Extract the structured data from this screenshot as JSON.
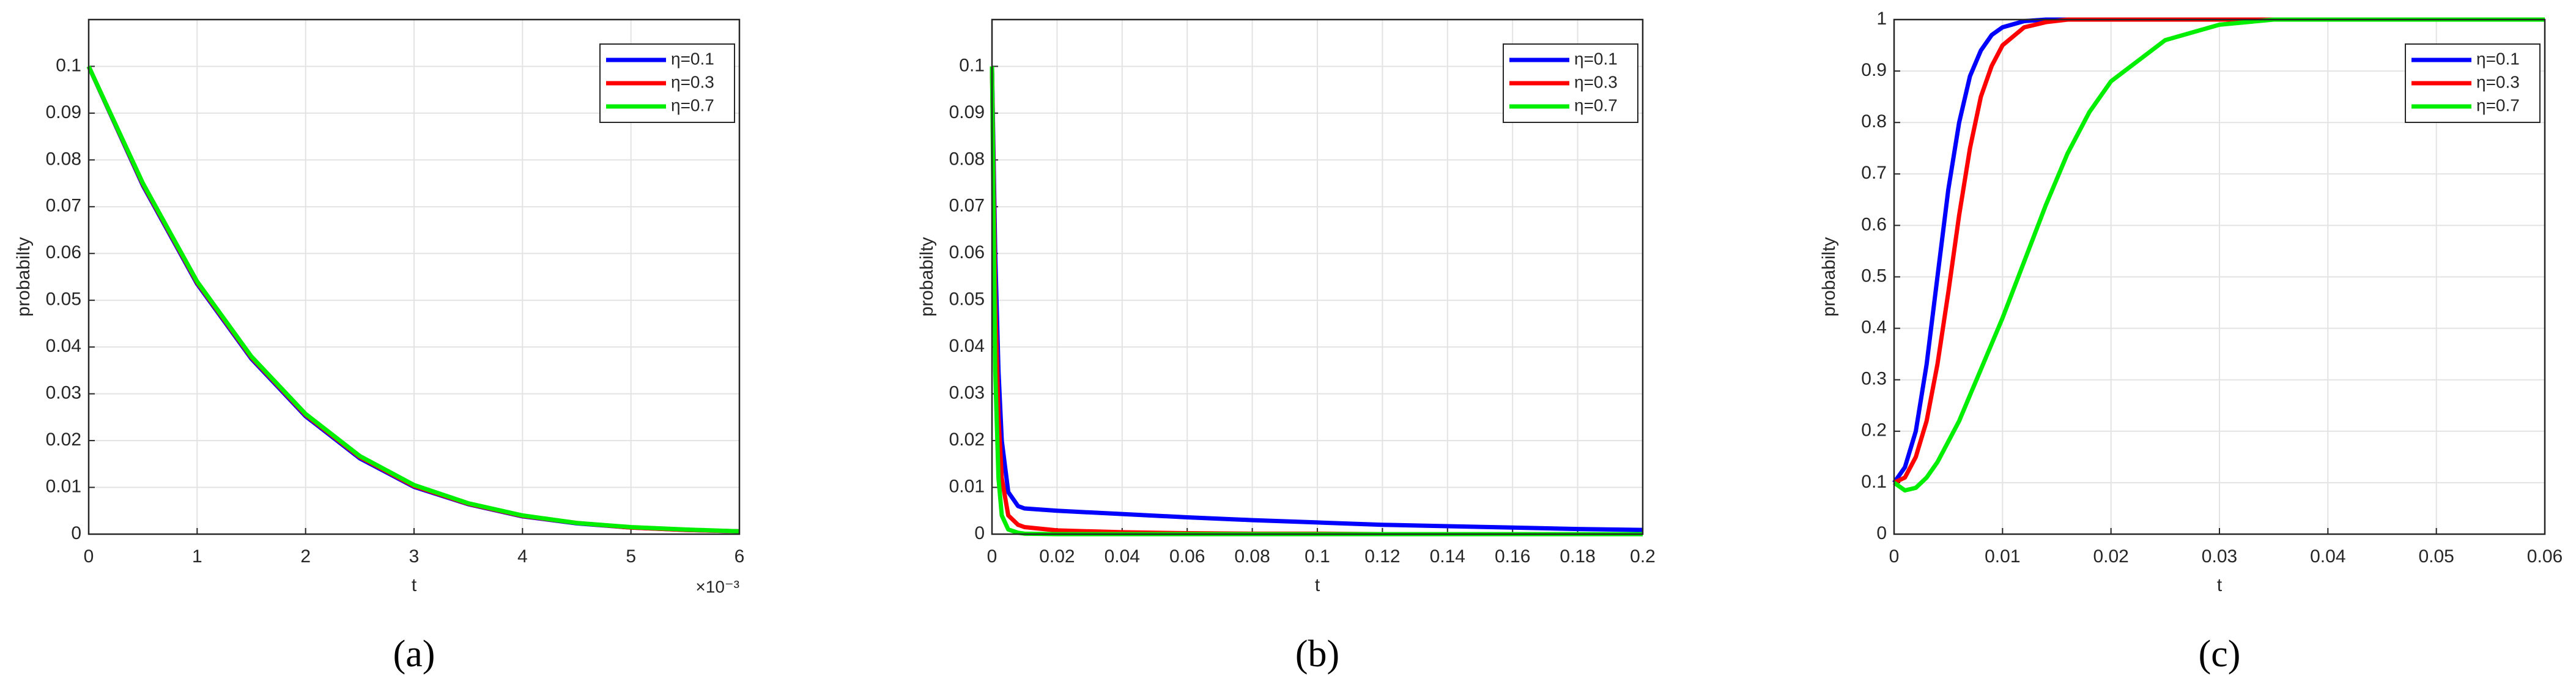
{
  "chart_data": [
    {
      "type": "line",
      "caption": "(a)",
      "x_label": "t",
      "y_label": "probabilty",
      "x_multiplier": "×10⁻³",
      "x": [
        0,
        0.5,
        1,
        1.5,
        2,
        2.5,
        3,
        3.5,
        4,
        4.5,
        5,
        5.5,
        6
      ],
      "series": [
        {
          "name": "η=0.1",
          "color": "#0000ff",
          "values": [
            0.1,
            0.0745,
            0.0535,
            0.0375,
            0.0252,
            0.0162,
            0.0101,
            0.0064,
            0.0038,
            0.0023,
            0.0014,
            0.0009,
            0.0006
          ]
        },
        {
          "name": "η=0.3",
          "color": "#ff0000",
          "values": [
            0.1,
            0.0748,
            0.0538,
            0.0378,
            0.0255,
            0.0165,
            0.0103,
            0.0065,
            0.0039,
            0.0024,
            0.0014,
            0.0009,
            0.0006
          ]
        },
        {
          "name": "η=0.7",
          "color": "#00ee00",
          "values": [
            0.1,
            0.075,
            0.054,
            0.038,
            0.0257,
            0.0167,
            0.0105,
            0.0066,
            0.004,
            0.0024,
            0.0015,
            0.001,
            0.0006
          ]
        }
      ],
      "xlim": [
        0,
        6
      ],
      "xticks": [
        0,
        1,
        2,
        3,
        4,
        5,
        6
      ],
      "ylim": [
        0,
        0.11
      ],
      "yticks": [
        0,
        0.01,
        0.02,
        0.03,
        0.04,
        0.05,
        0.06,
        0.07,
        0.08,
        0.09,
        0.1
      ],
      "grid": true,
      "legend": "top-right"
    },
    {
      "type": "line",
      "caption": "(b)",
      "x_label": "t",
      "y_label": "probabilty",
      "x": [
        0,
        0.001,
        0.002,
        0.003,
        0.005,
        0.008,
        0.01,
        0.02,
        0.04,
        0.06,
        0.08,
        0.1,
        0.12,
        0.14,
        0.16,
        0.18,
        0.2
      ],
      "series": [
        {
          "name": "η=0.1",
          "color": "#0000ff",
          "values": [
            0.1,
            0.06,
            0.035,
            0.02,
            0.009,
            0.006,
            0.0055,
            0.005,
            0.0043,
            0.0036,
            0.003,
            0.0025,
            0.002,
            0.0017,
            0.0014,
            0.0011,
            0.0009
          ]
        },
        {
          "name": "η=0.3",
          "color": "#ff0000",
          "values": [
            0.1,
            0.05,
            0.025,
            0.012,
            0.004,
            0.002,
            0.0015,
            0.0008,
            0.0004,
            0.0002,
            0.0001,
            0.0001,
            0,
            0,
            0,
            0,
            0
          ]
        },
        {
          "name": "η=0.7",
          "color": "#00ee00",
          "values": [
            0.1,
            0.035,
            0.012,
            0.004,
            0.001,
            0.0003,
            0.0001,
            0,
            0,
            0,
            0,
            0,
            0,
            0,
            0,
            0,
            0
          ]
        }
      ],
      "xlim": [
        0,
        0.2
      ],
      "xticks": [
        0,
        0.02,
        0.04,
        0.06,
        0.08,
        0.1,
        0.12,
        0.14,
        0.16,
        0.18,
        0.2
      ],
      "ylim": [
        0,
        0.11
      ],
      "yticks": [
        0,
        0.01,
        0.02,
        0.03,
        0.04,
        0.05,
        0.06,
        0.07,
        0.08,
        0.09,
        0.1
      ],
      "grid": true,
      "legend": "top-right"
    },
    {
      "type": "line",
      "caption": "(c)",
      "x_label": "t",
      "y_label": "probabilty",
      "x": [
        0,
        0.001,
        0.002,
        0.003,
        0.004,
        0.005,
        0.006,
        0.007,
        0.008,
        0.009,
        0.01,
        0.012,
        0.014,
        0.016,
        0.018,
        0.02,
        0.025,
        0.03,
        0.035,
        0.04,
        0.05,
        0.06
      ],
      "series": [
        {
          "name": "η=0.1",
          "color": "#0000ff",
          "values": [
            0.1,
            0.13,
            0.2,
            0.33,
            0.5,
            0.67,
            0.8,
            0.89,
            0.94,
            0.97,
            0.985,
            0.997,
            1,
            1,
            1,
            1,
            1,
            1,
            1,
            1,
            1,
            1
          ]
        },
        {
          "name": "η=0.3",
          "color": "#ff0000",
          "values": [
            0.1,
            0.11,
            0.15,
            0.22,
            0.33,
            0.47,
            0.62,
            0.75,
            0.85,
            0.91,
            0.95,
            0.985,
            0.995,
            1,
            1,
            1,
            1,
            1,
            1,
            1,
            1,
            1
          ]
        },
        {
          "name": "η=0.7",
          "color": "#00ee00",
          "values": [
            0.1,
            0.085,
            0.09,
            0.11,
            0.14,
            0.18,
            0.22,
            0.27,
            0.32,
            0.37,
            0.42,
            0.53,
            0.64,
            0.74,
            0.82,
            0.88,
            0.96,
            0.99,
            1,
            1,
            1,
            1
          ]
        }
      ],
      "xlim": [
        0,
        0.06
      ],
      "xticks": [
        0,
        0.01,
        0.02,
        0.03,
        0.04,
        0.05,
        0.06
      ],
      "ylim": [
        0,
        1
      ],
      "yticks": [
        0,
        0.1,
        0.2,
        0.3,
        0.4,
        0.5,
        0.6,
        0.7,
        0.8,
        0.9,
        1
      ],
      "grid": true,
      "legend": "top-right"
    }
  ]
}
